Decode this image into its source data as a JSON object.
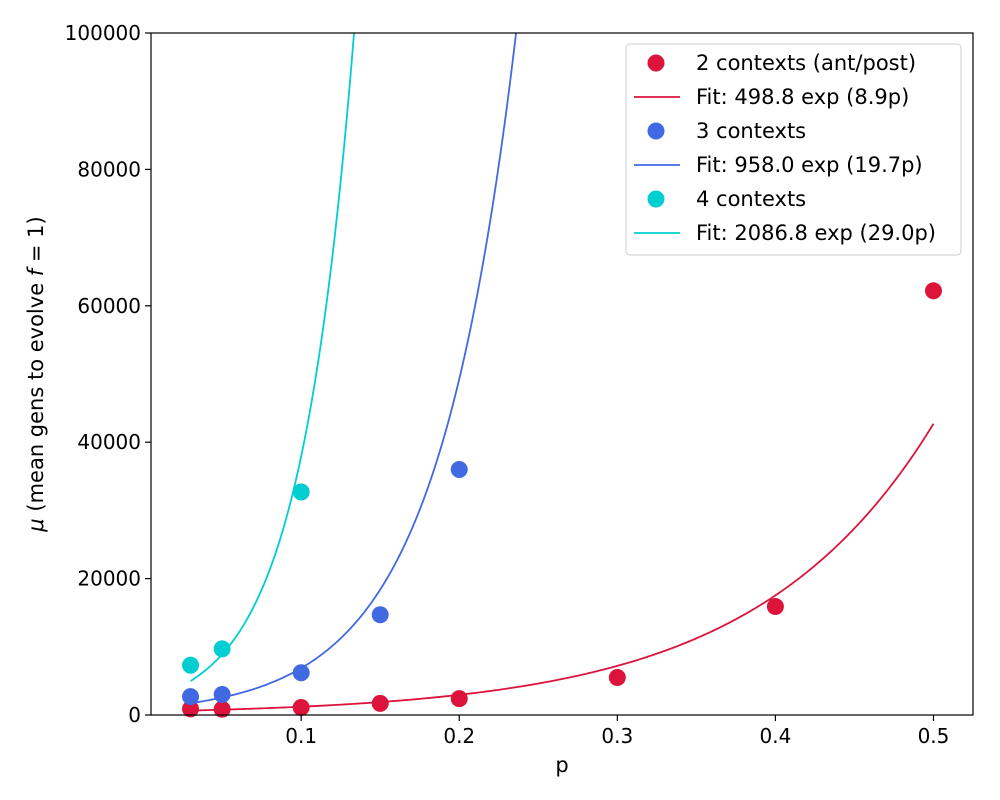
{
  "chart_data": {
    "type": "scatter",
    "title": "",
    "xlabel": "p",
    "ylabel": "(mean gens to evolve ",
    "ylabel_mu": "μ",
    "ylabel_f": "f",
    "ylabel_eq": " = 1)",
    "xlim": [
      0.005,
      0.525
    ],
    "ylim": [
      0,
      100000
    ],
    "xticks": [
      0.1,
      0.2,
      0.3,
      0.4,
      0.5
    ],
    "xtick_labels": [
      "0.1",
      "0.2",
      "0.3",
      "0.4",
      "0.5"
    ],
    "yticks": [
      0,
      20000,
      40000,
      60000,
      80000,
      100000
    ],
    "ytick_labels": [
      "0",
      "20000",
      "40000",
      "60000",
      "80000",
      "100000"
    ],
    "grid": false,
    "legend_position": "top-right",
    "series": [
      {
        "name": "2 contexts (ant/post)",
        "kind": "points",
        "color": "#dc143c",
        "x": [
          0.03,
          0.05,
          0.1,
          0.15,
          0.2,
          0.3,
          0.4,
          0.5
        ],
        "y": [
          900,
          850,
          1100,
          1700,
          2400,
          5500,
          15900,
          62200
        ]
      },
      {
        "name": "Fit: 498.8 exp (8.9p)",
        "kind": "fit",
        "color": "#dc143c",
        "a": 498.8,
        "b": 8.9,
        "xrange": [
          0.03,
          0.5
        ]
      },
      {
        "name": "3 contexts",
        "kind": "points",
        "color": "#4169e1",
        "x": [
          0.03,
          0.05,
          0.1,
          0.15,
          0.2
        ],
        "y": [
          2700,
          3000,
          6200,
          14700,
          36000
        ]
      },
      {
        "name": "Fit: 958.0 exp (19.7p)",
        "kind": "fit",
        "color": "#4169e1",
        "a": 958.0,
        "b": 19.7,
        "xrange": [
          0.03,
          0.5
        ]
      },
      {
        "name": "4 contexts",
        "kind": "points",
        "color": "#00ced1",
        "x": [
          0.03,
          0.05,
          0.1
        ],
        "y": [
          7300,
          9700,
          32700
        ]
      },
      {
        "name": "Fit: 2086.8 exp (29.0p)",
        "kind": "fit",
        "color": "#00ced1",
        "a": 2086.8,
        "b": 29.0,
        "xrange": [
          0.03,
          0.5
        ]
      }
    ]
  }
}
